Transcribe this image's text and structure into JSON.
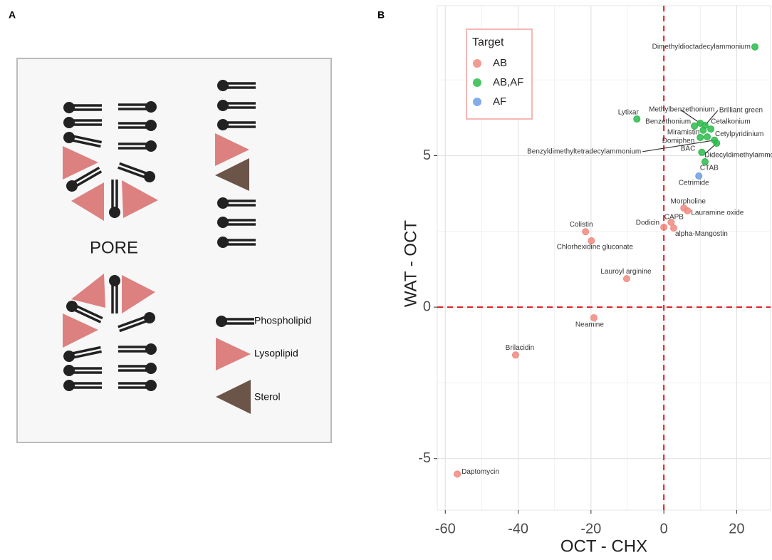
{
  "panel_a": {
    "label": "A",
    "pore": "PORE",
    "legend": [
      "Phospholipid",
      "Lysoplipid",
      "Sterol"
    ]
  },
  "chart_data": {
    "type": "scatter",
    "panel_label": "B",
    "x_label": "OCT - CHX",
    "y_label": "WAT - OCT",
    "xlim": [
      -62.2,
      29.3
    ],
    "ylim": [
      -6.7,
      9.95
    ],
    "xticks": [
      -60,
      -40,
      -20,
      0,
      20
    ],
    "yticks": [
      -5,
      0,
      5
    ],
    "x_minor_grid": [
      -50,
      -30,
      -10,
      10
    ],
    "y_minor_grid": [
      -2.5,
      2.5,
      7.5
    ],
    "grid": true,
    "reference_lines": {
      "x": 0,
      "y": 0,
      "color": "#e41a1c"
    },
    "legend_title": "Target",
    "legend_position": "top-left",
    "series": [
      {
        "name": "AB",
        "color": "#f08a80",
        "labels": [
          "Morpholine",
          "Lauramine oxide",
          "CAPB",
          "Dodicin",
          "alpha-Mangostin",
          "Colistin",
          "Chlorhexidine gluconate",
          "Lauroyl arginine",
          "Neamine",
          "Brilacidin",
          "Daptomycin"
        ],
        "x": [
          5.5,
          6.5,
          2.0,
          0,
          2.7,
          -21.5,
          -19.9,
          -10.2,
          -19.2,
          -40.7,
          -56.7
        ],
        "values": [
          3.27,
          3.18,
          2.8,
          2.64,
          2.61,
          2.49,
          2.19,
          0.94,
          -0.35,
          -1.58,
          -5.51
        ]
      },
      {
        "name": "AB,AF",
        "color": "#2bbb4a",
        "labels": [
          "Dimethyldioctadecylammonium",
          "Lytixar",
          "Methylbenzethonium",
          "Brilliant green",
          "Benzethonium",
          "Cetalkonium",
          "Miramistin",
          "Cetylpyridinium",
          "Domiphen",
          "Benzyldimethyltetradecylammonium",
          "Didecyldimethylammonium",
          "BAC",
          "CTAB"
        ],
        "x": [
          25.0,
          -7.4,
          10.0,
          11.3,
          8.4,
          12.9,
          10.8,
          11.9,
          10.0,
          13.9,
          14.5,
          10.4,
          11.3
        ],
        "values": [
          8.59,
          6.21,
          6.07,
          6.0,
          5.98,
          5.88,
          5.84,
          5.62,
          5.6,
          5.51,
          5.41,
          5.11,
          4.8
        ]
      },
      {
        "name": "AF",
        "color": "#6f9ee8",
        "labels": [
          "Cetrimide"
        ],
        "x": [
          9.6
        ],
        "values": [
          4.33
        ]
      }
    ]
  }
}
